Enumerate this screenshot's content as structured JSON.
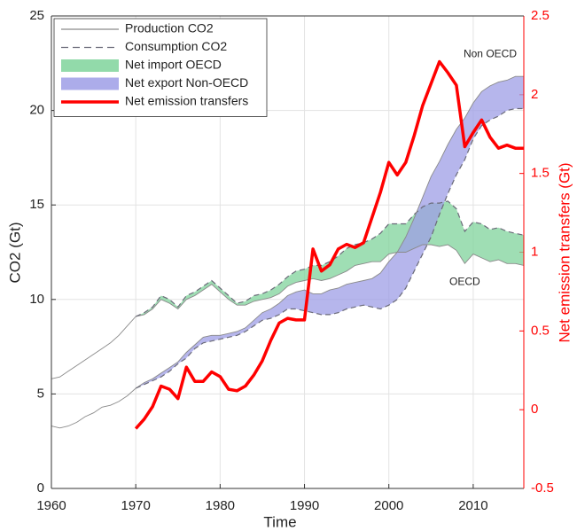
{
  "chart_data": {
    "type": "line",
    "x": [
      1960,
      1961,
      1962,
      1963,
      1964,
      1965,
      1966,
      1967,
      1968,
      1969,
      1970,
      1971,
      1972,
      1973,
      1974,
      1975,
      1976,
      1977,
      1978,
      1979,
      1980,
      1981,
      1982,
      1983,
      1984,
      1985,
      1986,
      1987,
      1988,
      1989,
      1990,
      1991,
      1992,
      1993,
      1994,
      1995,
      1996,
      1997,
      1998,
      1999,
      2000,
      2001,
      2002,
      2003,
      2004,
      2005,
      2006,
      2007,
      2008,
      2009,
      2010,
      2011,
      2012,
      2013,
      2014,
      2015,
      2016
    ],
    "xlim": [
      1960,
      2016
    ],
    "xticks": [
      1960,
      1970,
      1980,
      1990,
      2000,
      2010
    ],
    "ylim": [
      0,
      25
    ],
    "yticks": [
      0,
      5,
      10,
      15,
      20,
      25
    ],
    "y2lim": [
      -0.5,
      2.5
    ],
    "y2ticks": [
      -0.5,
      0,
      0.5,
      1,
      1.5,
      2,
      2.5
    ],
    "x_label": "Time",
    "y_label": "CO2 (Gt)",
    "y2_label": "Net emission transfers (Gt)",
    "grid": true,
    "legend": "upper left",
    "series": [
      {
        "name": "Production CO2",
        "color": "#8a8a8a",
        "dash": false
      },
      {
        "name": "Consumption CO2",
        "color": "#6a6a78",
        "dash": true
      },
      {
        "name": "Net import OECD",
        "color": "#7fd39b"
      },
      {
        "name": "Net export Non-OECD",
        "color": "#9d9ee6"
      },
      {
        "name": "Net emission transfers",
        "color": "#ff0000",
        "axis": "y2",
        "values": [
          null,
          null,
          null,
          null,
          null,
          null,
          null,
          null,
          null,
          null,
          -0.12,
          -0.06,
          0.02,
          0.15,
          0.13,
          0.07,
          0.27,
          0.18,
          0.18,
          0.24,
          0.21,
          0.13,
          0.12,
          0.15,
          0.22,
          0.31,
          0.44,
          0.55,
          0.58,
          0.57,
          0.57,
          1.02,
          0.88,
          0.92,
          1.02,
          1.05,
          1.03,
          1.06,
          1.22,
          1.38,
          1.57,
          1.49,
          1.57,
          1.74,
          1.93,
          2.07,
          2.21,
          2.14,
          2.06,
          1.67,
          1.76,
          1.84,
          1.73,
          1.66,
          1.68,
          1.66,
          1.66
        ]
      }
    ],
    "groups": [
      {
        "label": "OECD",
        "band": 2,
        "production": [
          5.8,
          5.9,
          6.2,
          6.5,
          6.8,
          7.1,
          7.4,
          7.7,
          8.1,
          8.6,
          9.1,
          9.2,
          9.5,
          10.0,
          9.8,
          9.5,
          10.0,
          10.2,
          10.5,
          10.8,
          10.4,
          10.0,
          9.7,
          9.7,
          9.9,
          10.0,
          10.1,
          10.3,
          10.7,
          10.9,
          11.0,
          11.1,
          11.0,
          11.1,
          11.3,
          11.5,
          11.8,
          11.9,
          12.0,
          12.0,
          12.4,
          12.5,
          12.5,
          12.7,
          12.9,
          12.9,
          12.8,
          12.9,
          12.6,
          11.9,
          12.4,
          12.2,
          12.0,
          12.1,
          11.9,
          11.9,
          11.8
        ],
        "consumption": [
          null,
          null,
          null,
          null,
          null,
          null,
          null,
          null,
          null,
          null,
          9.1,
          9.3,
          9.6,
          10.2,
          10.0,
          9.6,
          10.2,
          10.4,
          10.7,
          11.0,
          10.6,
          10.2,
          9.8,
          9.9,
          10.2,
          10.3,
          10.5,
          10.8,
          11.2,
          11.5,
          11.6,
          11.8,
          11.8,
          12.0,
          12.3,
          12.7,
          12.9,
          13.0,
          13.2,
          13.5,
          14.0,
          14.0,
          14.0,
          14.5,
          14.9,
          15.1,
          15.1,
          15.2,
          14.8,
          13.6,
          14.1,
          14.0,
          13.7,
          13.8,
          13.6,
          13.5,
          13.4
        ]
      },
      {
        "label": "Non OECD",
        "band": 3,
        "production": [
          3.3,
          3.2,
          3.3,
          3.5,
          3.8,
          4.0,
          4.3,
          4.4,
          4.6,
          4.9,
          5.3,
          5.6,
          5.8,
          6.1,
          6.4,
          6.7,
          7.2,
          7.6,
          8.0,
          8.1,
          8.1,
          8.2,
          8.3,
          8.5,
          8.9,
          9.3,
          9.5,
          9.8,
          10.2,
          10.4,
          10.5,
          10.3,
          10.3,
          10.5,
          10.6,
          10.8,
          10.9,
          11.0,
          11.1,
          11.4,
          12.0,
          12.5,
          13.3,
          14.3,
          15.4,
          16.5,
          17.3,
          18.2,
          19.0,
          19.6,
          20.4,
          21.0,
          21.3,
          21.5,
          21.6,
          21.8,
          21.8
        ],
        "consumption": [
          null,
          null,
          null,
          null,
          null,
          null,
          null,
          null,
          null,
          null,
          5.3,
          5.5,
          5.7,
          5.9,
          6.2,
          6.6,
          6.9,
          7.4,
          7.7,
          7.8,
          7.9,
          8.0,
          8.1,
          8.3,
          8.6,
          8.9,
          9.0,
          9.2,
          9.5,
          9.5,
          9.4,
          9.3,
          9.2,
          9.2,
          9.3,
          9.5,
          9.6,
          9.7,
          9.6,
          9.5,
          9.7,
          10.0,
          10.6,
          11.5,
          12.4,
          13.3,
          14.5,
          15.6,
          16.6,
          17.4,
          18.5,
          19.2,
          19.5,
          19.7,
          20.0,
          20.1,
          20.1
        ]
      }
    ]
  }
}
